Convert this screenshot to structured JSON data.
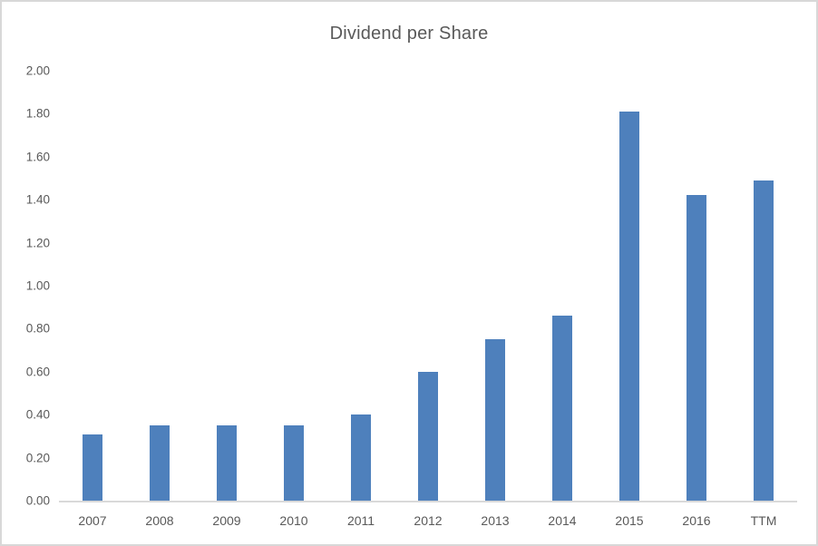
{
  "chart_data": {
    "type": "bar",
    "title": "Dividend per Share",
    "categories": [
      "2007",
      "2008",
      "2009",
      "2010",
      "2011",
      "2012",
      "2013",
      "2014",
      "2015",
      "2016",
      "TTM"
    ],
    "values": [
      0.31,
      0.35,
      0.35,
      0.35,
      0.4,
      0.6,
      0.75,
      0.86,
      1.81,
      1.42,
      1.49
    ],
    "series_name": "Dividend per Share",
    "xlabel": "",
    "ylabel": "",
    "ylim": [
      0.0,
      2.0
    ],
    "y_tick_step": 0.2,
    "y_ticks": [
      "2.00",
      "1.80",
      "1.60",
      "1.40",
      "1.20",
      "1.00",
      "0.80",
      "0.60",
      "0.40",
      "0.20",
      "0.00"
    ],
    "grid": false,
    "legend": false,
    "legend_position": "none",
    "bar_color": "#4E80BC",
    "text_color": "#595959",
    "axis_line_color": "#D9D9D9",
    "background_color": "#FFFFFF",
    "frame_color": "#D8D8D8"
  }
}
